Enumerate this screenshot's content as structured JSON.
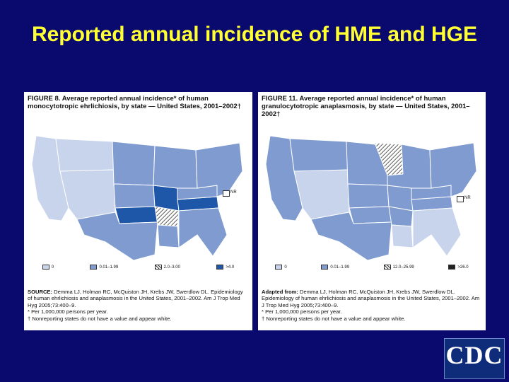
{
  "slide": {
    "title": "Reported annual incidence of HME and HGE",
    "colors": {
      "background": "#0a0a6e",
      "title": "#ffff33"
    }
  },
  "figures": [
    {
      "title": "FIGURE 8. Average reported annual incidence* of human monocytotropic ehrlichiosis, by state — United States, 2001–2002†",
      "nr_label": "NR",
      "legend": [
        {
          "label": "0",
          "fill": "#c8d4ec"
        },
        {
          "label": "0.01–1.99",
          "fill": "#7f9bd0"
        },
        {
          "label": "2.0–3.00",
          "fill": "hatch"
        },
        {
          "label": ">4.0",
          "fill": "#1e56a8"
        }
      ],
      "source_lead": "SOURCE:",
      "source_text": " Demma LJ, Holman RC, McQuiston JH, Krebs JW, Swerdlow DL. Epidemiology of human ehrlichiosis and anaplasmosis in the United States, 2001–2002. Am J Trop Med Hyg 2005;73:400–9.",
      "footnote1": "* Per 1,000,000 persons per year.",
      "footnote2": "† Nonreporting states do not have a value and appear white."
    },
    {
      "title": "FIGURE 11. Average reported annual incidence* of human granulocytotropic anaplasmosis, by state — United States, 2001–2002†",
      "nr_label": "NR",
      "legend": [
        {
          "label": "0",
          "fill": "#c8d4ec"
        },
        {
          "label": "0.01–1.99",
          "fill": "#7f9bd0"
        },
        {
          "label": "12.0–25.99",
          "fill": "hatch"
        },
        {
          "label": ">26.0",
          "fill": "#222222"
        }
      ],
      "source_lead": "Adapted from:",
      "source_text": " Demma LJ, Holman RC, McQuiston JH, Krebs JW, Swerdlow DL. Epidemiology of human ehrlichiosis and anaplasmosis in the United States, 2001–2002. Am J Trop Med Hyg 2005;73:400–9.",
      "footnote1": "* Per 1,000,000 persons per year.",
      "footnote2": "† Nonreporting states do not have a value and appear white."
    }
  ],
  "logo": {
    "text": "CDC",
    "icon": "cdc-logo"
  }
}
